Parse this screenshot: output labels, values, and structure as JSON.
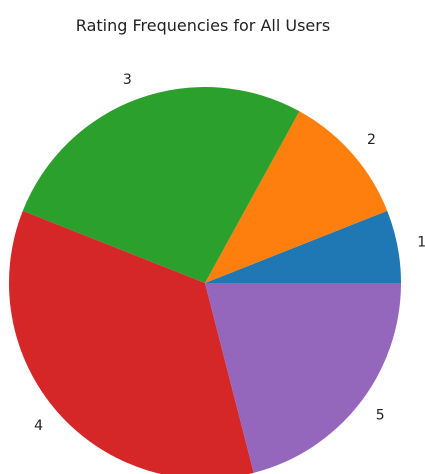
{
  "chart_data": {
    "type": "pie",
    "title": "Rating Frequencies for All Users",
    "categories": [
      "1",
      "2",
      "3",
      "4",
      "5"
    ],
    "values": [
      6,
      11,
      27,
      35,
      21
    ],
    "colors": [
      "#1f77b4",
      "#ff7f0e",
      "#2ca02c",
      "#d62728",
      "#9467bd"
    ],
    "start_angle_deg": 0,
    "direction": "counterclockwise"
  }
}
